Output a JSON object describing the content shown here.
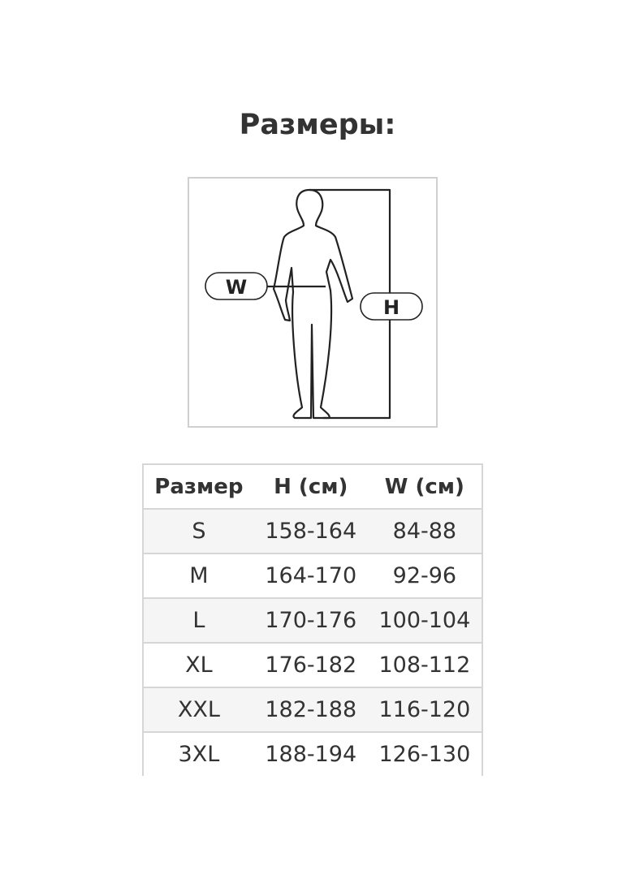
{
  "title": "Размеры:",
  "figure": {
    "waist_label": "W",
    "height_label": "H"
  },
  "table": {
    "headers": [
      "Размер",
      "H (см)",
      "W (см)"
    ],
    "rows": [
      [
        "S",
        "158-164",
        "84-88"
      ],
      [
        "M",
        "164-170",
        "92-96"
      ],
      [
        "L",
        "170-176",
        "100-104"
      ],
      [
        "XL",
        "176-182",
        "108-112"
      ],
      [
        "XXL",
        "182-188",
        "116-120"
      ],
      [
        "3XL",
        "188-194",
        "126-130"
      ]
    ]
  }
}
